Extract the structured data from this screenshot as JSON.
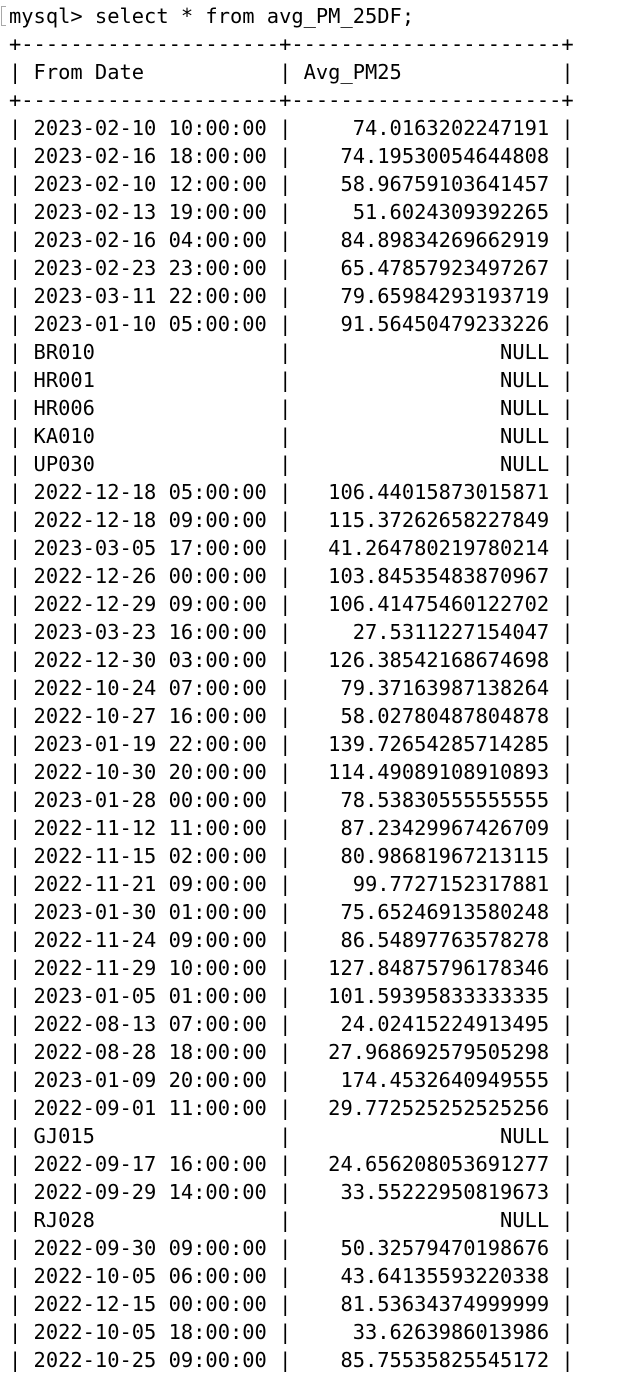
{
  "prompt": "mysql> select * from avg_PM_25DF;",
  "table": {
    "columns": [
      "From Date",
      "Avg_PM25"
    ],
    "rows": [
      [
        "2023-02-10 10:00:00",
        "74.0163202247191"
      ],
      [
        "2023-02-16 18:00:00",
        "74.19530054644808"
      ],
      [
        "2023-02-10 12:00:00",
        "58.96759103641457"
      ],
      [
        "2023-02-13 19:00:00",
        "51.6024309392265"
      ],
      [
        "2023-02-16 04:00:00",
        "84.89834269662919"
      ],
      [
        "2023-02-23 23:00:00",
        "65.47857923497267"
      ],
      [
        "2023-03-11 22:00:00",
        "79.65984293193719"
      ],
      [
        "2023-01-10 05:00:00",
        "91.56450479233226"
      ],
      [
        "BR010",
        "NULL"
      ],
      [
        "HR001",
        "NULL"
      ],
      [
        "HR006",
        "NULL"
      ],
      [
        "KA010",
        "NULL"
      ],
      [
        "UP030",
        "NULL"
      ],
      [
        "2022-12-18 05:00:00",
        "106.44015873015871"
      ],
      [
        "2022-12-18 09:00:00",
        "115.37262658227849"
      ],
      [
        "2023-03-05 17:00:00",
        "41.264780219780214"
      ],
      [
        "2022-12-26 00:00:00",
        "103.84535483870967"
      ],
      [
        "2022-12-29 09:00:00",
        "106.41475460122702"
      ],
      [
        "2023-03-23 16:00:00",
        "27.5311227154047"
      ],
      [
        "2022-12-30 03:00:00",
        "126.38542168674698"
      ],
      [
        "2022-10-24 07:00:00",
        "79.37163987138264"
      ],
      [
        "2022-10-27 16:00:00",
        "58.02780487804878"
      ],
      [
        "2023-01-19 22:00:00",
        "139.72654285714285"
      ],
      [
        "2022-10-30 20:00:00",
        "114.49089108910893"
      ],
      [
        "2023-01-28 00:00:00",
        "78.53830555555555"
      ],
      [
        "2022-11-12 11:00:00",
        "87.23429967426709"
      ],
      [
        "2022-11-15 02:00:00",
        "80.98681967213115"
      ],
      [
        "2022-11-21 09:00:00",
        "99.7727152317881"
      ],
      [
        "2023-01-30 01:00:00",
        "75.65246913580248"
      ],
      [
        "2022-11-24 09:00:00",
        "86.54897763578278"
      ],
      [
        "2022-11-29 10:00:00",
        "127.84875796178346"
      ],
      [
        "2023-01-05 01:00:00",
        "101.59395833333335"
      ],
      [
        "2022-08-13 07:00:00",
        "24.02415224913495"
      ],
      [
        "2022-08-28 18:00:00",
        "27.968692579505298"
      ],
      [
        "2023-01-09 20:00:00",
        "174.4532640949555"
      ],
      [
        "2022-09-01 11:00:00",
        "29.772525252525256"
      ],
      [
        "GJ015",
        "NULL"
      ],
      [
        "2022-09-17 16:00:00",
        "24.656208053691277"
      ],
      [
        "2022-09-29 14:00:00",
        "33.55222950819673"
      ],
      [
        "RJ028",
        "NULL"
      ],
      [
        "2022-09-30 09:00:00",
        "50.32579470198676"
      ],
      [
        "2022-10-05 06:00:00",
        "43.64135593220338"
      ],
      [
        "2022-12-15 00:00:00",
        "81.53634374999999"
      ],
      [
        "2022-10-05 18:00:00",
        "33.6263986013986"
      ],
      [
        "2022-10-25 09:00:00",
        "85.75535825545172"
      ]
    ]
  }
}
